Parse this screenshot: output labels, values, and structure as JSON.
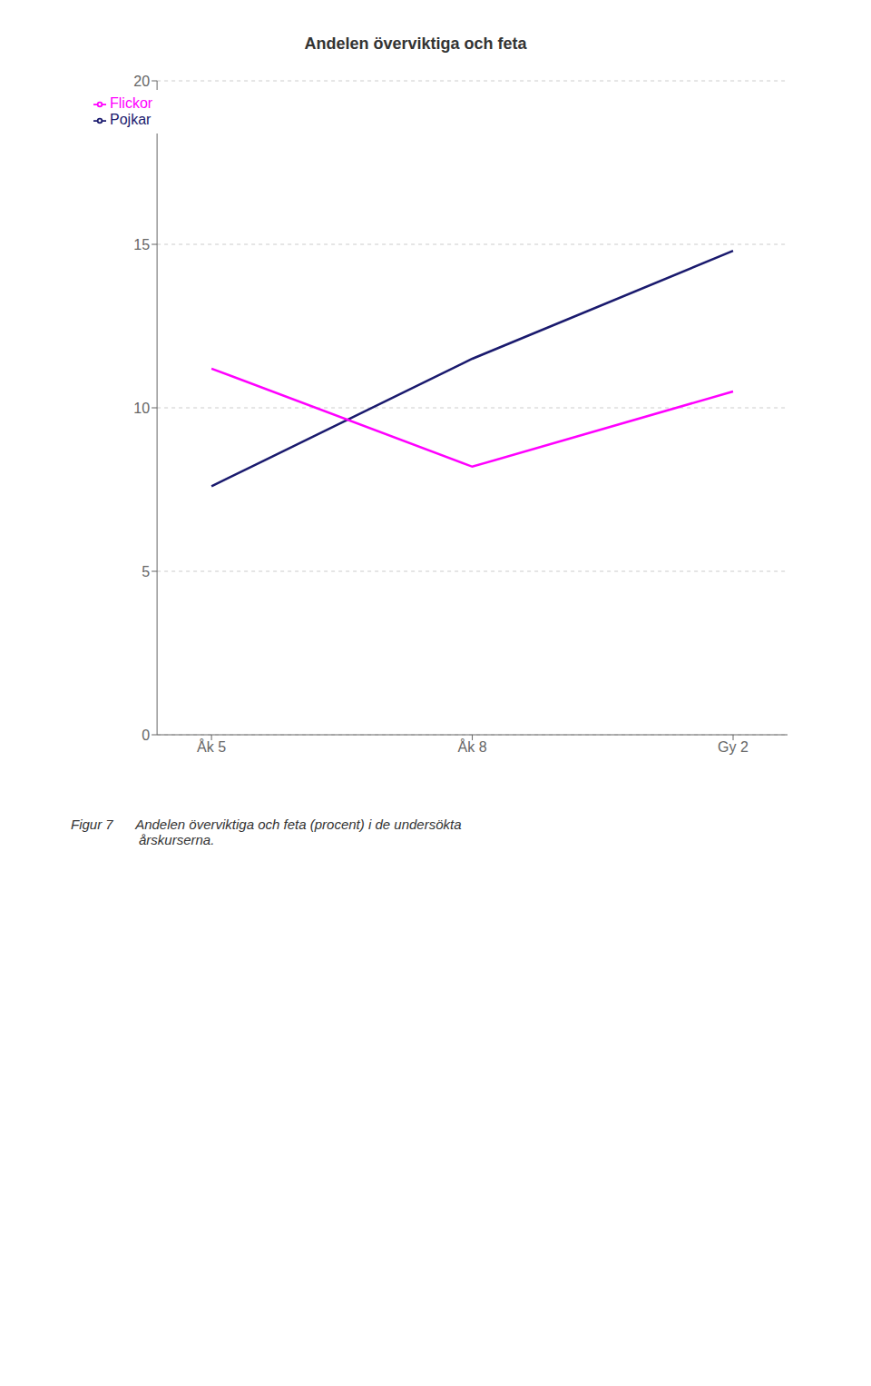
{
  "chart_data": {
    "type": "line",
    "title": "Andelen överviktiga och feta",
    "annotations": [
      "Figur 7      Andelen överviktiga och feta (procent) i de undersökta\n                  årskurserna."
    ],
    "categories": [
      "Åk 5",
      "Åk 8",
      "Gy 2"
    ],
    "series": [
      {
        "name": "Pojkar",
        "color": "#1a1a6e",
        "line_style": "solid",
        "values": [
          7.6,
          11.5,
          14.8
        ]
      },
      {
        "name": "Flickor",
        "color": "#ff00ff",
        "line_style": "solid",
        "values": [
          11.2,
          8.2,
          10.5
        ]
      }
    ],
    "ylim": [
      0,
      20
    ],
    "yticks": [
      0,
      5,
      10,
      15,
      20
    ],
    "grid": true,
    "legend": "upper left"
  }
}
